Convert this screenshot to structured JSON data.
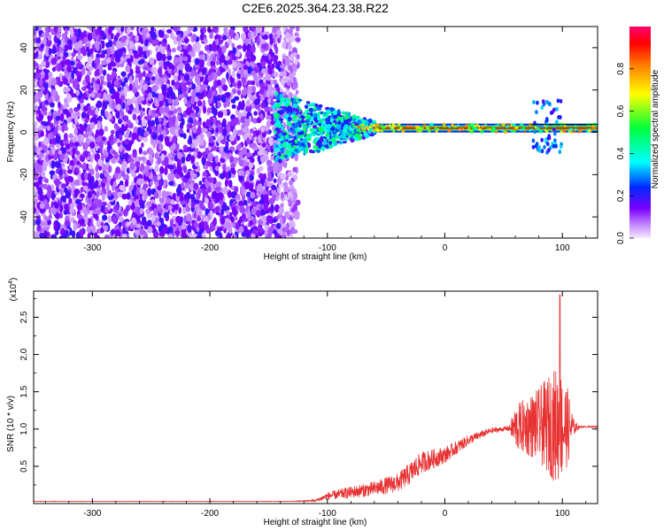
{
  "title": "C2E6.2025.364.23.38.R22",
  "chart_data": [
    {
      "type": "heatmap",
      "title": "C2E6.2025.364.23.38.R22",
      "xlabel": "Height of straight line (km)",
      "ylabel": "Frequency (Hz)",
      "xlim": [
        -350,
        130
      ],
      "ylim": [
        -50,
        50
      ],
      "xticks": [
        -300,
        -200,
        -100,
        0,
        100
      ],
      "xtick_labels": [
        "-300",
        "-200",
        "-100",
        "0",
        "100"
      ],
      "yticks": [
        -40,
        -20,
        0,
        20,
        40
      ],
      "ytick_labels": [
        "-40",
        "-20",
        "0",
        "20",
        "40"
      ],
      "colorbar": {
        "label": "Normalized spectral amplitude",
        "range": [
          0,
          1
        ],
        "ticks": [
          0,
          0.2,
          0.4,
          0.6,
          0.8
        ],
        "tick_labels": [
          "0.0",
          "0.2",
          "0.4",
          "0.6",
          "0.8"
        ]
      },
      "regions": [
        {
          "name": "broadband noise",
          "x_range": [
            -350,
            -125
          ],
          "y_range": [
            -50,
            50
          ],
          "amplitude": 0.15
        },
        {
          "name": "signal onset",
          "x_range": [
            -145,
            -60
          ],
          "y_range": [
            -15,
            15
          ],
          "amplitude": 0.35
        },
        {
          "name": "carrier line",
          "x_range": [
            -60,
            130
          ],
          "y_center": 2,
          "amplitude": 0.9
        },
        {
          "name": "sidebands",
          "x_range": [
            75,
            100
          ],
          "y_range": [
            -10,
            15
          ],
          "amplitude": 0.3
        }
      ]
    },
    {
      "type": "line",
      "xlabel": "Height of straight line (km)",
      "ylabel": "SNR (10 * v/v)",
      "y_scale_label": "(x10",
      "y_scale_exp": "4",
      "y_scale_close": ")",
      "xlim": [
        -350,
        130
      ],
      "ylim": [
        0,
        28500
      ],
      "xticks": [
        -300,
        -200,
        -100,
        0,
        100
      ],
      "xtick_labels": [
        "-300",
        "-200",
        "-100",
        "0",
        "100"
      ],
      "yticks": [
        5000,
        10000,
        15000,
        20000,
        25000
      ],
      "ytick_labels": [
        "0.5",
        "1.0",
        "1.5",
        "2.0",
        "2.5"
      ],
      "series": [
        {
          "name": "SNR",
          "color": "#e83232",
          "envelope": {
            "x": [
              -350,
              -130,
              -110,
              -100,
              -80,
              -60,
              -40,
              -30,
              -20,
              -10,
              0,
              10,
              20,
              30,
              40,
              50,
              55,
              60,
              70,
              80,
              90,
              95,
              100,
              105,
              110,
              115,
              130
            ],
            "y": [
              300,
              300,
              400,
              1000,
              1500,
              2000,
              2800,
              4000,
              5500,
              6000,
              6500,
              7500,
              8500,
              9200,
              9800,
              10000,
              10100,
              10200,
              10400,
              10500,
              10500,
              10500,
              10400,
              10300,
              10200,
              10300,
              10300
            ],
            "noise": [
              20,
              20,
              150,
              500,
              800,
              1000,
              1300,
              1500,
              1500,
              1300,
              1100,
              900,
              700,
              500,
              400,
              300,
              400,
              3000,
              4000,
              5000,
              7000,
              8000,
              7000,
              5000,
              1000,
              100,
              80
            ]
          },
          "peak": {
            "x": 98,
            "y": 28000
          }
        }
      ]
    }
  ],
  "colors": {
    "axis": "#000000",
    "grid": "#000000",
    "line": "#e83232",
    "background": "#ffffff"
  }
}
